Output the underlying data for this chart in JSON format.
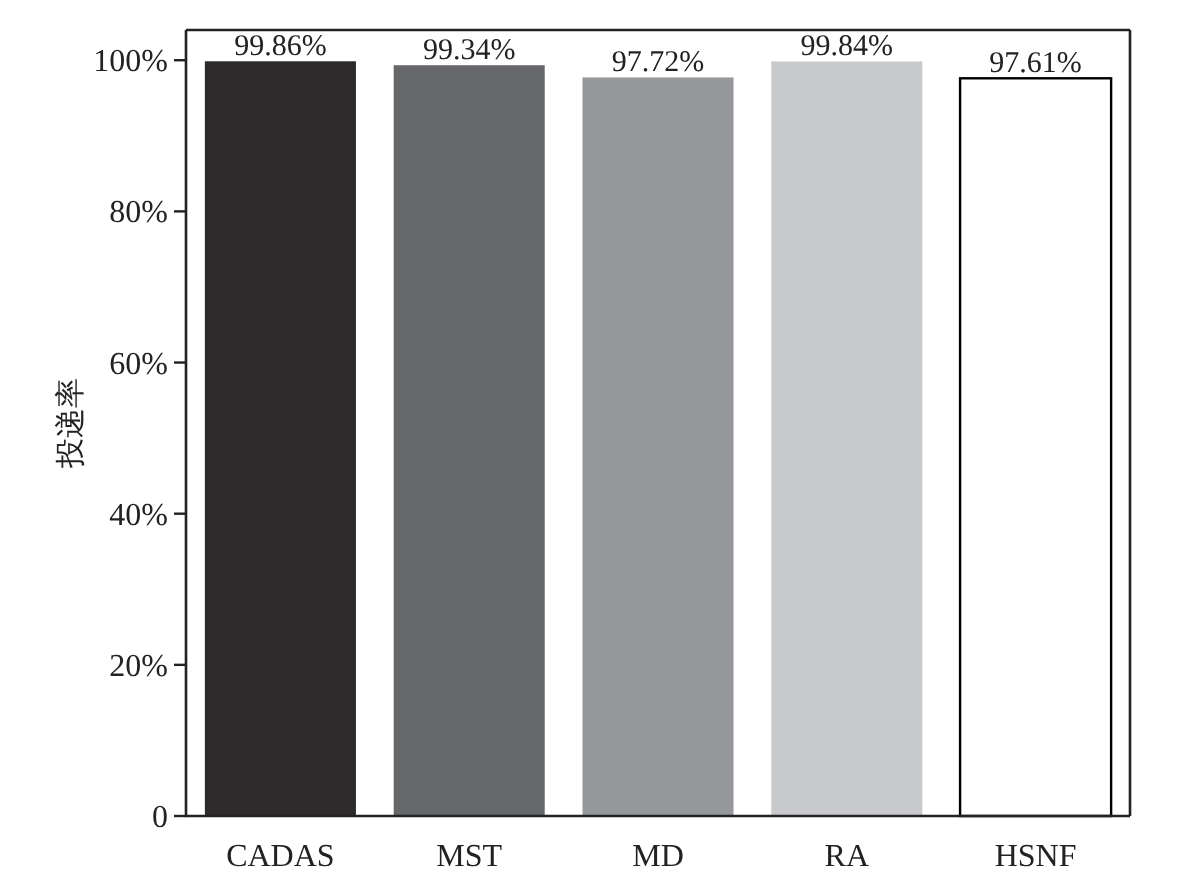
{
  "chart_data": {
    "type": "bar",
    "ylabel": "投递率",
    "categories": [
      "CADAS",
      "MST",
      "MD",
      "RA",
      "HSNF"
    ],
    "values": [
      99.86,
      99.34,
      97.72,
      99.84,
      97.61
    ],
    "value_labels": [
      "99.86%",
      "99.34%",
      "97.72%",
      "99.84%",
      "97.61%"
    ],
    "colors": [
      "#2c2a2b",
      "#666769",
      "#96979a",
      "#c8c9cb",
      "#ffffff"
    ],
    "ylim": [
      0,
      104
    ],
    "yticks": [
      0,
      {
        "value": 20,
        "label": "20%"
      },
      {
        "value": 40,
        "label": "40%"
      },
      {
        "value": 60,
        "label": "60%"
      },
      {
        "value": 80,
        "label": "80%"
      },
      {
        "value": 100,
        "label": "100%"
      }
    ],
    "grid": false
  }
}
